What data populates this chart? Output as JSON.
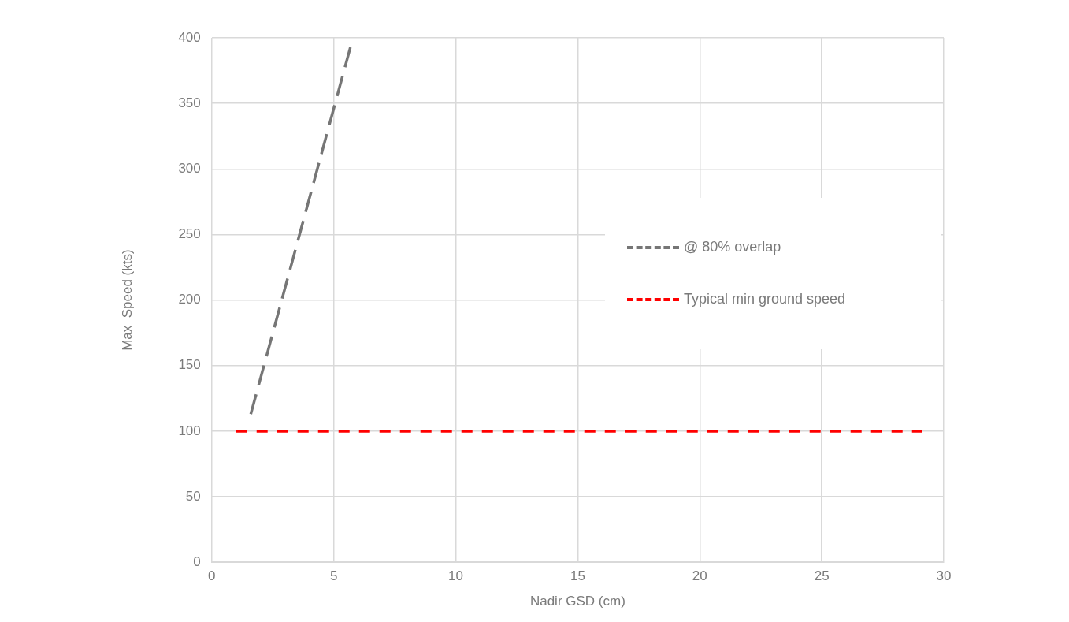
{
  "chart_data": {
    "type": "line",
    "xlabel": "Nadir GSD (cm)",
    "ylabel": "Max  Speed (kts)",
    "series": [
      {
        "name": "@ 80% overlap",
        "color": "#767676",
        "x": [
          1.6,
          5.7
        ],
        "values": [
          113,
          394
        ]
      },
      {
        "name": "Typical min ground speed",
        "color": "#ff0000",
        "x": [
          1,
          29.1
        ],
        "values": [
          100,
          100
        ]
      }
    ],
    "xlim": [
      0,
      30
    ],
    "xticks": [
      0,
      5,
      10,
      15,
      20,
      25,
      30
    ],
    "ylim": [
      0,
      400
    ],
    "yticks": [
      0,
      50,
      100,
      150,
      200,
      250,
      300,
      350,
      400
    ],
    "grid": true,
    "legend": "right",
    "marker": "none",
    "line_style": "dashed"
  }
}
